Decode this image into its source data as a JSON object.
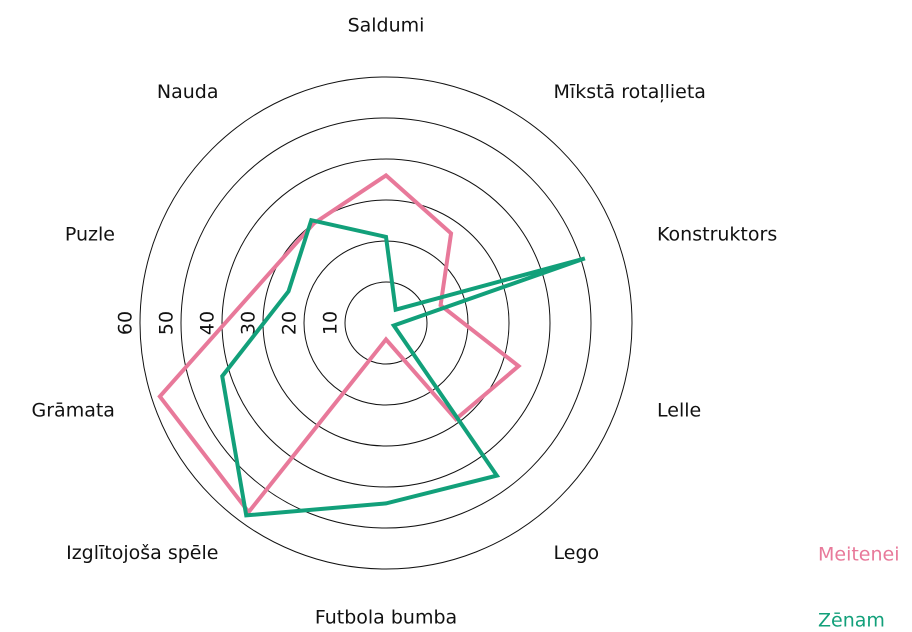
{
  "chart_data": {
    "type": "radar",
    "categories": [
      "Saldumi",
      "Mīkstā rotaļlieta",
      "Konstruktors",
      "Lelle",
      "Lego",
      "Futbola bumba",
      "Izglītojoša spēle",
      "Grāmata",
      "Puzle",
      "Nauda"
    ],
    "series": [
      {
        "name": "Meitenei",
        "color": "#e8799a",
        "values": [
          36,
          27,
          14,
          34,
          29,
          4,
          57,
          58,
          32,
          30
        ]
      },
      {
        "name": "Zēnam",
        "color": "#12a07a",
        "values": [
          21,
          4,
          51,
          2,
          46,
          44,
          58,
          42,
          25,
          31
        ]
      }
    ],
    "rlim": [
      0,
      60
    ],
    "rticks": [
      10,
      20,
      30,
      40,
      50,
      60
    ],
    "legend": "bottom-right"
  }
}
